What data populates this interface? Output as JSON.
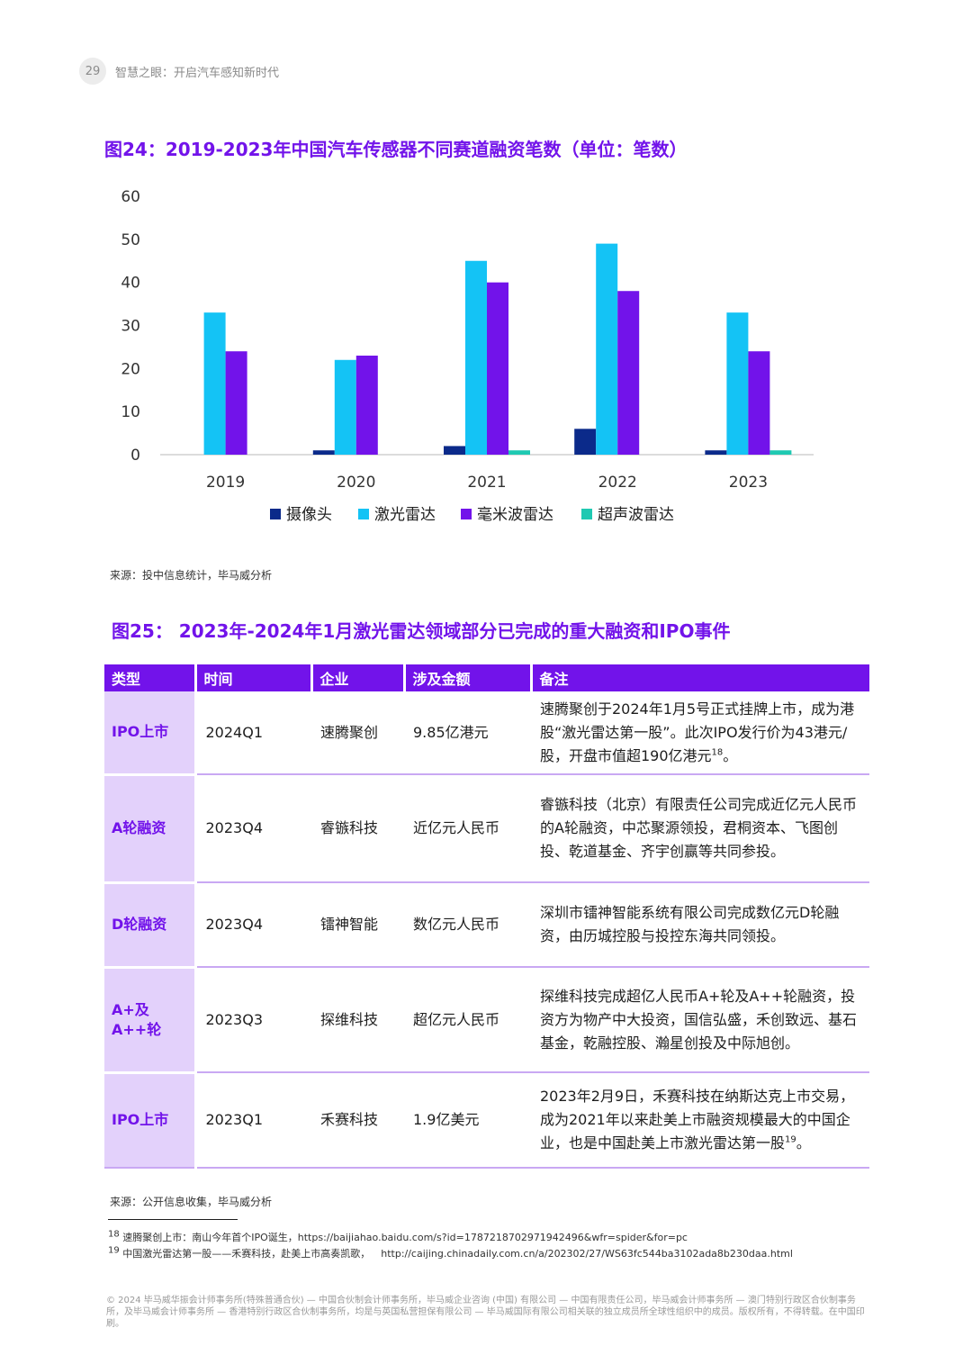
{
  "header": {
    "page_number": "29",
    "title": "智慧之眼：开启汽车感知新时代"
  },
  "figure24": {
    "title": "图24：2019-2023年中国汽车传感器不同赛道融资笔数（单位：笔数）",
    "source": "来源：投中信息统计，毕马威分析"
  },
  "chart_data": {
    "type": "bar",
    "title": "图24：2019-2023年中国汽车传感器不同赛道融资笔数（单位：笔数）",
    "categories": [
      "2019",
      "2020",
      "2021",
      "2022",
      "2023"
    ],
    "series": [
      {
        "name": "摄像头",
        "color": "#0b2a8a",
        "values": [
          0,
          1,
          2,
          6,
          1
        ]
      },
      {
        "name": "激光雷达",
        "color": "#14c3f5",
        "values": [
          33,
          22,
          45,
          49,
          33
        ]
      },
      {
        "name": "毫米波雷达",
        "color": "#7213ea",
        "values": [
          24,
          23,
          40,
          38,
          24
        ]
      },
      {
        "name": "超声波雷达",
        "color": "#1fc9b2",
        "values": [
          0,
          0,
          1,
          0,
          1
        ]
      }
    ],
    "yticks": [
      "0",
      "10",
      "20",
      "30",
      "40",
      "50",
      "60"
    ],
    "ylim": [
      0,
      60
    ],
    "xlabel": "",
    "ylabel": "",
    "grid": false,
    "legend_position": "bottom"
  },
  "figure25": {
    "title": "图25： 2023年-2024年1月激光雷达领域部分已完成的重大融资和IPO事件",
    "columns": [
      "类型",
      "时间",
      "企业",
      "涉及金额",
      "备注"
    ],
    "rows": [
      {
        "type": "IPO上市",
        "time": "2024Q1",
        "company": "速腾聚创",
        "amount": "9.85亿港元",
        "note": "速腾聚创于2024年1月5号正式挂牌上市，成为港股“激光雷达第一股”。此次IPO发行价为43港元/股，开盘市值超190亿港元",
        "note_ref": "18",
        "note_tail": "。"
      },
      {
        "type": "A轮融资",
        "time": "2023Q4",
        "company": "睿镞科技",
        "amount": "近亿元人民币",
        "note": "睿镞科技（北京）有限责任公司完成近亿元人民币的A轮融资，中芯聚源领投，君桐资本、飞图创投、乾道基金、齐宇创赢等共同参投。",
        "note_ref": "",
        "note_tail": ""
      },
      {
        "type": "D轮融资",
        "time": "2023Q4",
        "company": "镭神智能",
        "amount": "数亿元人民币",
        "note": "深圳市镭神智能系统有限公司完成数亿元D轮融资，由历城控股与投控东海共同领投。",
        "note_ref": "",
        "note_tail": ""
      },
      {
        "type": "A+及A++轮",
        "time": "2023Q3",
        "company": "探维科技",
        "amount": "超亿元人民币",
        "note": "探维科技完成超亿人民币A+轮及A++轮融资，投资方为物产中大投资，国信弘盛，禾创致远、基石基金，乾融控股、瀚星创投及中际旭创。",
        "note_ref": "",
        "note_tail": ""
      },
      {
        "type": "IPO上市",
        "time": "2023Q1",
        "company": "禾赛科技",
        "amount": "1.9亿美元",
        "note": "2023年2月9日，禾赛科技在纳斯达克上市交易，成为2021年以来赴美上市融资规模最大的中国企业，也是中国赴美上市激光雷达第一股",
        "note_ref": "19",
        "note_tail": "。"
      }
    ],
    "source": "来源：公开信息收集，毕马威分析"
  },
  "footnotes": [
    {
      "num": "18",
      "text": "速腾聚创上市：南山今年首个IPO诞生，https://baijiahao.baidu.com/s?id=1787218702971942496&wfr=spider&for=pc",
      "url": ""
    },
    {
      "num": "19",
      "text": "中国激光雷达第一股——禾赛科技，赴美上市高奏凯歌，",
      "url": "http://caijing.chinadaily.com.cn/a/202302/27/WS63fc544ba3102ada8b230daa.html"
    }
  ],
  "legal": "© 2024 毕马威华振会计师事务所(特殊普通合伙) — 中国合伙制会计师事务所，毕马威企业咨询 (中国) 有限公司 — 中国有限责任公司，毕马威会计师事务所 — 澳门特别行政区合伙制事务所，及毕马威会计师事务所 — 香港特别行政区合伙制事务所，均是与英国私营担保有限公司 — 毕马威国际有限公司相关联的独立成员所全球性组织中的成员。版权所有，不得转载。在中国印刷。"
}
